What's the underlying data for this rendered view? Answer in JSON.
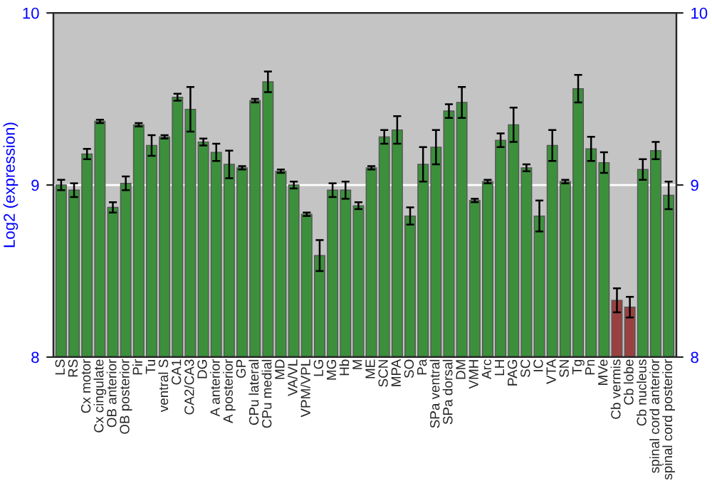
{
  "chart_data": {
    "type": "bar",
    "ylabel": "Log2 (expression)",
    "categories": [
      "LS",
      "RS",
      "Cx motor",
      "Cx cingulate",
      "OB anterior",
      "OB posterior",
      "Pir",
      "Tu",
      "ventral S",
      "CA1",
      "CA2/CA3",
      "DG",
      "A anterior",
      "A posterior",
      "GP",
      "CPu lateral",
      "CPu medial",
      "MD",
      "VA/VL",
      "VPM/VPL",
      "LG",
      "MG",
      "Hb",
      "M",
      "ME",
      "SCN",
      "MPA",
      "SO",
      "Pa",
      "SPa ventral",
      "SPa dorsal",
      "DM",
      "VMH",
      "Arc",
      "LH",
      "PAG",
      "SC",
      "IC",
      "VTA",
      "SN",
      "Tg",
      "Pn",
      "MVe",
      "Cb vermis",
      "Cb lobe",
      "Cb nucleus",
      "spinal cord anterior",
      "spinal cord posterior"
    ],
    "values": [
      9.0,
      8.97,
      9.18,
      9.37,
      8.87,
      9.01,
      9.35,
      9.23,
      9.28,
      9.51,
      9.44,
      9.25,
      9.19,
      9.12,
      9.1,
      9.49,
      9.6,
      9.08,
      9.0,
      8.83,
      8.59,
      8.97,
      8.97,
      8.88,
      9.1,
      9.28,
      9.32,
      8.82,
      9.12,
      9.22,
      9.43,
      9.48,
      8.91,
      9.02,
      9.26,
      9.35,
      9.1,
      8.82,
      9.23,
      9.02,
      9.56,
      9.21,
      9.13,
      8.33,
      8.29,
      9.09,
      9.2,
      8.94
    ],
    "errors": [
      0.03,
      0.04,
      0.03,
      0.01,
      0.03,
      0.04,
      0.01,
      0.06,
      0.01,
      0.02,
      0.13,
      0.02,
      0.05,
      0.08,
      0.01,
      0.01,
      0.06,
      0.01,
      0.02,
      0.01,
      0.09,
      0.04,
      0.05,
      0.02,
      0.01,
      0.04,
      0.08,
      0.05,
      0.1,
      0.1,
      0.04,
      0.09,
      0.01,
      0.01,
      0.04,
      0.1,
      0.02,
      0.09,
      0.09,
      0.01,
      0.08,
      0.07,
      0.06,
      0.07,
      0.06,
      0.06,
      0.05,
      0.08
    ],
    "colors": [
      "#2e9e2e",
      "#2e9e2e",
      "#2e9e2e",
      "#2e9e2e",
      "#2e9e2e",
      "#2e9e2e",
      "#2e9e2e",
      "#2e9e2e",
      "#2e9e2e",
      "#2e9e2e",
      "#2e9e2e",
      "#2e9e2e",
      "#2e9e2e",
      "#2e9e2e",
      "#2e9e2e",
      "#2e9e2e",
      "#2e9e2e",
      "#2e9e2e",
      "#2e9e2e",
      "#2e9e2e",
      "#2e9e2e",
      "#2e9e2e",
      "#2e9e2e",
      "#2e9e2e",
      "#2e9e2e",
      "#2e9e2e",
      "#2e9e2e",
      "#2e9e2e",
      "#2e9e2e",
      "#2e9e2e",
      "#2e9e2e",
      "#2e9e2e",
      "#2e9e2e",
      "#2e9e2e",
      "#2e9e2e",
      "#2e9e2e",
      "#2e9e2e",
      "#2e9e2e",
      "#2e9e2e",
      "#2e9e2e",
      "#2e9e2e",
      "#2e9e2e",
      "#2e9e2e",
      "#a83232",
      "#a83232",
      "#2e9e2e",
      "#2e9e2e",
      "#2e9e2e"
    ],
    "ylim": [
      8,
      10
    ],
    "yticks": [
      8,
      9,
      10
    ],
    "y2lim": [
      8,
      10
    ],
    "y2ticks": [
      8,
      9,
      10
    ],
    "grid": "y"
  }
}
